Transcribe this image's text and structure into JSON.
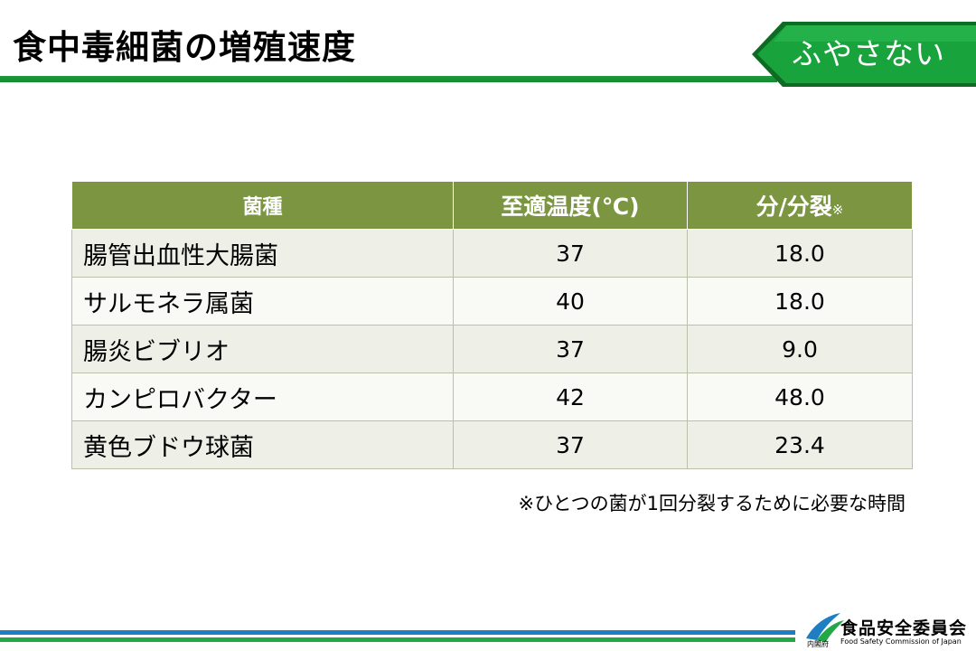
{
  "header": {
    "title": "食中毒細菌の増殖速度",
    "badge": "ふやさない"
  },
  "table": {
    "headers": {
      "name": "菌種",
      "temp": "至適温度(℃)",
      "rate": "分/分裂",
      "rate_mark": "※"
    },
    "rows": [
      {
        "name": "腸管出血性大腸菌",
        "temp": "37",
        "rate": "18.0"
      },
      {
        "name": "サルモネラ属菌",
        "temp": "40",
        "rate": "18.0"
      },
      {
        "name": "腸炎ビブリオ",
        "temp": "37",
        "rate": "9.0"
      },
      {
        "name": "カンピロバクター",
        "temp": "42",
        "rate": "48.0"
      },
      {
        "name": "黄色ブドウ球菌",
        "temp": "37",
        "rate": "23.4"
      }
    ]
  },
  "note": "※ひとつの菌が1回分裂するために必要な時間",
  "footer": {
    "cabinet": "内閣府",
    "org_name": "食品安全委員会",
    "org_en": "Food Safety Commission of Japan"
  },
  "colors": {
    "title_rule": "#1f9a3a",
    "badge": "#18a33c",
    "table_header": "#7b9540",
    "footer_blue": "#1d7ec2",
    "footer_green": "#23a847"
  }
}
